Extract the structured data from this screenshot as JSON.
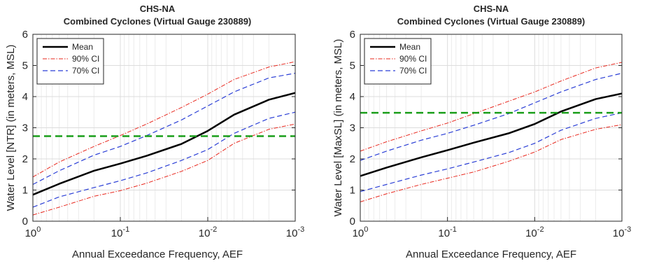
{
  "chart_data": [
    {
      "type": "line",
      "title": "CHS-NA",
      "subtitle": "Combined Cyclones (Virtual Gauge 230889)",
      "xlabel": "Annual Exceedance Frequency, AEF",
      "ylabel": "Water Level [NTR] (in meters, MSL)",
      "xscale": "log",
      "x_reversed": true,
      "xlim": [
        1,
        0.001
      ],
      "ylim": [
        0,
        6
      ],
      "x_ticks": [
        {
          "value": 1,
          "base": "10",
          "exp": "0"
        },
        {
          "value": 0.1,
          "base": "10",
          "exp": "-1"
        },
        {
          "value": 0.01,
          "base": "10",
          "exp": "-2"
        },
        {
          "value": 0.001,
          "base": "10",
          "exp": "-3"
        }
      ],
      "y_ticks": [
        "0",
        "1",
        "2",
        "3",
        "4",
        "5",
        "6"
      ],
      "grid": true,
      "legend_position": "top-left",
      "x": [
        1,
        0.5,
        0.2,
        0.1,
        0.05,
        0.02,
        0.01,
        0.005,
        0.002,
        0.001
      ],
      "series": [
        {
          "name": "Mean",
          "color": "#000000",
          "style": "solid",
          "width": 2.5,
          "legend": true,
          "values": [
            0.85,
            1.2,
            1.62,
            1.85,
            2.1,
            2.48,
            2.9,
            3.42,
            3.9,
            4.12
          ]
        },
        {
          "name": "90% CI",
          "color": "#e8281e",
          "style": "dashdot",
          "width": 1,
          "legend": true,
          "values": [
            1.42,
            1.9,
            2.4,
            2.75,
            3.12,
            3.65,
            4.08,
            4.55,
            4.95,
            5.12
          ]
        },
        {
          "name": "70% CI",
          "color": "#2b3fd6",
          "style": "dashed",
          "width": 1.2,
          "legend": true,
          "values": [
            1.18,
            1.62,
            2.12,
            2.4,
            2.75,
            3.25,
            3.7,
            4.15,
            4.6,
            4.75
          ]
        },
        {
          "color": "#2b3fd6",
          "style": "dashed",
          "width": 1.2,
          "legend": false,
          "values": [
            0.45,
            0.78,
            1.08,
            1.3,
            1.55,
            1.95,
            2.3,
            2.82,
            3.3,
            3.5
          ]
        },
        {
          "color": "#e8281e",
          "style": "dashdot",
          "width": 1,
          "legend": false,
          "values": [
            0.2,
            0.45,
            0.8,
            0.98,
            1.22,
            1.6,
            1.95,
            2.5,
            2.95,
            3.12
          ]
        }
      ],
      "reference_line": {
        "y": 2.73,
        "color": "#1a9e1a",
        "style": "dashed"
      }
    },
    {
      "type": "line",
      "title": "CHS-NA",
      "subtitle": "Combined Cyclones (Virtual Gauge 230889)",
      "xlabel": "Annual Exceedance Frequency, AEF",
      "ylabel": "Water Level [MaxSL] (in meters, MSL)",
      "xscale": "log",
      "x_reversed": true,
      "xlim": [
        1,
        0.001
      ],
      "ylim": [
        0,
        6
      ],
      "x_ticks": [
        {
          "value": 1,
          "base": "10",
          "exp": "0"
        },
        {
          "value": 0.1,
          "base": "10",
          "exp": "-1"
        },
        {
          "value": 0.01,
          "base": "10",
          "exp": "-2"
        },
        {
          "value": 0.001,
          "base": "10",
          "exp": "-3"
        }
      ],
      "y_ticks": [
        "0",
        "1",
        "2",
        "3",
        "4",
        "5",
        "6"
      ],
      "grid": true,
      "legend_position": "top-left",
      "x": [
        1,
        0.5,
        0.2,
        0.1,
        0.05,
        0.02,
        0.01,
        0.005,
        0.002,
        0.001
      ],
      "series": [
        {
          "name": "Mean",
          "color": "#000000",
          "style": "solid",
          "width": 2.5,
          "legend": true,
          "values": [
            1.45,
            1.72,
            2.05,
            2.28,
            2.52,
            2.82,
            3.12,
            3.52,
            3.92,
            4.1
          ]
        },
        {
          "name": "90% CI",
          "color": "#e8281e",
          "style": "dashdot",
          "width": 1,
          "legend": true,
          "values": [
            2.25,
            2.55,
            2.9,
            3.15,
            3.45,
            3.85,
            4.15,
            4.5,
            4.92,
            5.1
          ]
        },
        {
          "name": "70% CI",
          "color": "#2b3fd6",
          "style": "dashed",
          "width": 1.2,
          "legend": true,
          "values": [
            1.95,
            2.25,
            2.6,
            2.82,
            3.08,
            3.45,
            3.8,
            4.15,
            4.55,
            4.75
          ]
        },
        {
          "color": "#2b3fd6",
          "style": "dashed",
          "width": 1.2,
          "legend": false,
          "values": [
            0.95,
            1.18,
            1.48,
            1.68,
            1.9,
            2.2,
            2.5,
            2.92,
            3.3,
            3.48
          ]
        },
        {
          "color": "#e8281e",
          "style": "dashdot",
          "width": 1,
          "legend": false,
          "values": [
            0.62,
            0.88,
            1.18,
            1.38,
            1.58,
            1.92,
            2.22,
            2.62,
            2.95,
            3.1
          ]
        }
      ],
      "reference_line": {
        "y": 3.48,
        "color": "#1a9e1a",
        "style": "dashed"
      }
    }
  ]
}
